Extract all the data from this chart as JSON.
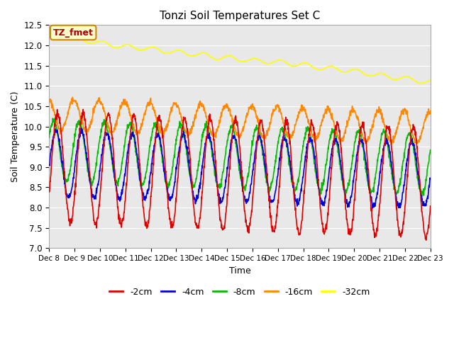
{
  "title": "Tonzi Soil Temperatures Set C",
  "ylabel": "Soil Temperature (C)",
  "xlabel": "Time",
  "ylim": [
    7.0,
    12.5
  ],
  "annotation": "TZ_fmet",
  "fig_bg_color": "#ffffff",
  "plot_bg_color": "#e8e8e8",
  "grid_color": "white",
  "series": {
    "-2cm": {
      "color": "#dd0000",
      "linewidth": 1.2
    },
    "-4cm": {
      "color": "#0000dd",
      "linewidth": 1.2
    },
    "-8cm": {
      "color": "#00bb00",
      "linewidth": 1.2
    },
    "-16cm": {
      "color": "#ff8800",
      "linewidth": 1.2
    },
    "-32cm": {
      "color": "#ffff00",
      "linewidth": 1.2
    }
  },
  "xtick_labels": [
    "Dec 8",
    "Dec 9",
    "Dec 10",
    "Dec 11",
    "Dec 12",
    "Dec 13",
    "Dec 14",
    "Dec 15",
    "Dec 16",
    "Dec 17",
    "Dec 18",
    "Dec 19",
    "Dec 20",
    "Dec 21",
    "Dec 22",
    "Dec 23"
  ],
  "n_points": 1440,
  "days": 15
}
